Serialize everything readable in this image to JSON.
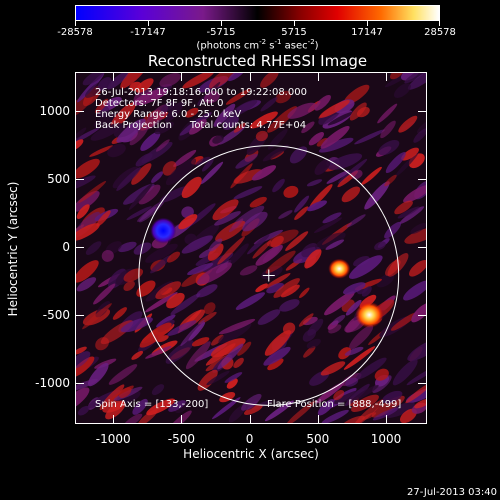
{
  "colorbar": {
    "tick_labels": [
      "-28578",
      "-17147",
      "-5715",
      "5715",
      "17147",
      "28578"
    ],
    "units_line1": "(photons cm",
    "units_sup1": "-2",
    "units_mid": " s",
    "units_sup2": "-1",
    "units_mid2": " asec",
    "units_sup3": "-2",
    "units_end": ")"
  },
  "title": "Reconstructed RHESSI Image",
  "info": {
    "line1": "26-Jul-2013 19:18:16.000 to 19:22:08.000",
    "line2": "Detectors: 7F 8F 9F, Att 0",
    "line3": "Energy Range: 6.0 - 25.0 keV",
    "line4a": "Back Projection",
    "line4b": "Total counts: 4.77E+04",
    "spin_axis": "Spin Axis = [133,-200]",
    "flare_position": "Flare Position = [888,-499]"
  },
  "axes": {
    "xlabel": "Heliocentric X (arcsec)",
    "ylabel": "Heliocentric Y (arcsec)",
    "xticks": [
      "-1000",
      "-500",
      "0",
      "500",
      "1000"
    ],
    "yticks": [
      "1000",
      "500",
      "0",
      "-500",
      "-1000"
    ]
  },
  "timestamp": "27-Jul-2013 03:40",
  "chart_data": {
    "type": "heatmap",
    "title": "Reconstructed RHESSI Image",
    "xlabel": "Heliocentric X (arcsec)",
    "ylabel": "Heliocentric Y (arcsec)",
    "xlim": [
      -1280,
      1300
    ],
    "ylim": [
      -1300,
      1290
    ],
    "colorbar_range": [
      -28578,
      28578
    ],
    "solar_limb_center": [
      133,
      -200
    ],
    "solar_limb_radius_arcsec": 952,
    "features": [
      {
        "label": "bright source",
        "x": 870,
        "y": -490,
        "sign": "positive"
      },
      {
        "label": "bright source",
        "x": 650,
        "y": -150,
        "sign": "positive"
      },
      {
        "label": "negative source",
        "x": -640,
        "y": 130,
        "sign": "negative"
      }
    ],
    "spin_axis": [
      133,
      -200
    ],
    "flare_position": [
      888,
      -499
    ]
  }
}
